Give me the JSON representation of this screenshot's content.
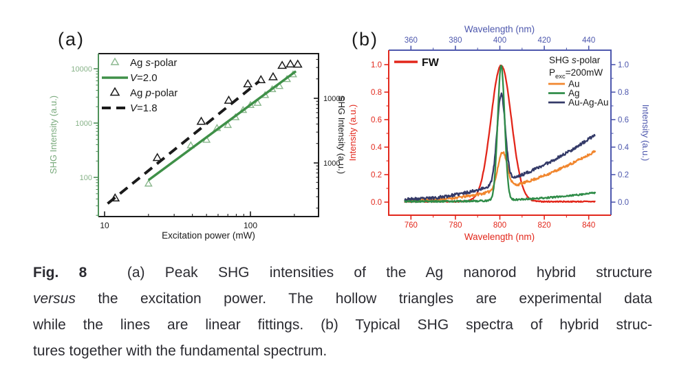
{
  "figure": {
    "panel_a_label": "(a)",
    "panel_b_label": "(b)"
  },
  "caption": {
    "lines": [
      {
        "justify": true,
        "segments": [
          {
            "t": "Fig. 8",
            "b": true
          },
          {
            "t": "  (a) Peak SHG intensities of the Ag nanorod hybrid structure"
          }
        ]
      },
      {
        "justify": true,
        "segments": [
          {
            "t": "versus",
            "i": true
          },
          {
            "t": " the excitation power. The hollow triangles are experimental data"
          }
        ]
      },
      {
        "justify": true,
        "segments": [
          {
            "t": "while the lines are linear fittings. (b) Typical SHG spectra of hybrid struc-"
          }
        ]
      },
      {
        "justify": false,
        "segments": [
          {
            "t": "tures together with the fundamental spectrum."
          }
        ]
      }
    ]
  },
  "chart_data": [
    {
      "id": "a",
      "type": "scatter",
      "x_axis": {
        "label": "Excitation power (mW)",
        "scale": "log",
        "ticks": [
          10,
          100
        ],
        "minor_ticks": [
          20,
          30,
          40,
          50,
          60,
          70,
          80,
          90,
          200
        ],
        "range": [
          9.1,
          293
        ],
        "color": "#1a1a1a"
      },
      "y_axis_left": {
        "label": "SHG Intensity (a.u.)",
        "scale": "log",
        "ticks": [
          100,
          1000,
          10000
        ],
        "range": [
          19,
          19000
        ],
        "color": "#4e9159",
        "text_color": "#86b287"
      },
      "y_axis_right": {
        "label": "SHG Intensity (a.u.)",
        "scale": "log",
        "ticks": [
          1000,
          10000
        ],
        "range": [
          148,
          49000
        ],
        "color": "#1a1a1a"
      },
      "series": [
        {
          "name": "Ag s-polar",
          "label_segments": [
            {
              "t": "Ag "
            },
            {
              "t": "s",
              "i": true
            },
            {
              "t": "-polar"
            }
          ],
          "kind": "scatter",
          "marker": "open-triangle",
          "axis": "left",
          "color": "#8ab78d",
          "size": 5.5,
          "x": [
            20,
            39,
            50,
            59,
            70,
            79,
            89,
            100,
            112,
            126,
            141,
            158,
            178,
            196
          ],
          "y": [
            75,
            380,
            480,
            790,
            900,
            1250,
            1700,
            2100,
            2300,
            3200,
            4100,
            4700,
            6300,
            7700
          ]
        },
        {
          "name": "V=2.0",
          "label_segments": [
            {
              "t": "V",
              "i": true
            },
            {
              "t": "=2.0"
            }
          ],
          "kind": "fit-line",
          "style": "solid",
          "axis": "left",
          "color": "#3f9048",
          "line": [
            [
              20,
              89
            ],
            [
              205,
              9000
            ]
          ]
        },
        {
          "name": "Ag p-polar",
          "label_segments": [
            {
              "t": "Ag "
            },
            {
              "t": "p",
              "i": true
            },
            {
              "t": "-polar"
            }
          ],
          "kind": "scatter",
          "marker": "open-triangle",
          "axis": "right",
          "color": "#1a1a1a",
          "size": 6.5,
          "x": [
            11.8,
            23,
            46,
            71,
            96,
            118,
            143,
            165,
            188,
            211
          ],
          "y": [
            280,
            1180,
            4300,
            9100,
            16300,
            18900,
            21000,
            31500,
            33100,
            32900
          ]
        },
        {
          "name": "V=1.8",
          "label_segments": [
            {
              "t": "V",
              "i": true
            },
            {
              "t": "=1.8"
            }
          ],
          "kind": "fit-line",
          "style": "dashed",
          "axis": "right",
          "color": "#1a1a1a",
          "line": [
            [
              10.5,
              235
            ],
            [
              115,
              18400
            ]
          ]
        }
      ]
    },
    {
      "id": "b",
      "type": "line",
      "x_axis_bottom": {
        "label": "Wavelength (nm)",
        "ticks": [
          760,
          780,
          800,
          820,
          840
        ],
        "minor_ticks": [
          770,
          790,
          810,
          830
        ],
        "range": [
          750,
          850
        ],
        "color": "#e2261a"
      },
      "x_axis_top": {
        "label": "Wavelength (nm)",
        "ticks": [
          360,
          380,
          400,
          420,
          440
        ],
        "minor_ticks": [
          370,
          390,
          410,
          430
        ],
        "range": [
          350,
          450
        ],
        "color": "#4d57ad"
      },
      "y_axis_left": {
        "label": "Intensity (a.u.)",
        "ticks": [
          0.0,
          0.2,
          0.4,
          0.6,
          0.8,
          1.0
        ],
        "minor_ticks": [
          0.1,
          0.3,
          0.5,
          0.7,
          0.9
        ],
        "range": [
          -0.095,
          1.105
        ],
        "color": "#e2261a"
      },
      "y_axis_right": {
        "label": "Intensity (a.u.)",
        "ticks": [
          0.0,
          0.2,
          0.4,
          0.6,
          0.8,
          1.0
        ],
        "minor_ticks": [
          0.1,
          0.3,
          0.5,
          0.7,
          0.9
        ],
        "range": [
          -0.095,
          1.105
        ],
        "color": "#4d57ad"
      },
      "annotation": {
        "fw_label": "FW",
        "title_segments": [
          {
            "t": "SHG "
          },
          {
            "t": "s",
            "i": true
          },
          {
            "t": "-polar"
          }
        ],
        "power_segments": [
          {
            "t": "P"
          },
          {
            "t": "exc",
            "sub": true
          },
          {
            "t": "=200mW"
          }
        ],
        "legend_entries": [
          "Au",
          "Ag",
          "Au-Ag-Au"
        ]
      },
      "x_data_range": [
        757,
        843
      ],
      "series": [
        {
          "name": "FW",
          "color": "#e2261a",
          "peak": {
            "center": 800.6,
            "sigma": 4.6,
            "amp": 0.99
          },
          "background": {
            "base": 0.004,
            "rise": 0,
            "power": 1
          },
          "noise": 0.0035,
          "seed": 7,
          "peak_value": 1.0,
          "peak_wavelength_nm": 800
        },
        {
          "name": "Au",
          "color": "#f1862e",
          "peak": {
            "center": 801.2,
            "sigma": 2.1,
            "amp": 0.27
          },
          "background": {
            "base": 0.012,
            "rise": 0.36,
            "power": 2.2
          },
          "noise": 0.009,
          "seed": 11,
          "peak_value": 0.37,
          "peak_wavelength_nm": 801,
          "value_at_843nm": 0.38
        },
        {
          "name": "Ag",
          "color": "#2f8c48",
          "peak": {
            "center": 800.6,
            "sigma": 1.55,
            "amp": 0.985
          },
          "background": {
            "base": 0.005,
            "rise": 0.065,
            "power": 3.0
          },
          "noise": 0.006,
          "seed": 5,
          "peak_value": 1.0,
          "peak_wavelength_nm": 800,
          "value_at_843nm": 0.07
        },
        {
          "name": "Au-Ag-Au",
          "color": "#343a68",
          "peak": {
            "center": 800.6,
            "sigma": 1.85,
            "amp": 0.645
          },
          "background": {
            "base": 0.02,
            "rise": 0.47,
            "power": 2.0
          },
          "noise": 0.011,
          "seed": 23,
          "peak_value": 0.78,
          "peak_wavelength_nm": 800,
          "value_at_843nm": 0.5
        }
      ]
    }
  ]
}
